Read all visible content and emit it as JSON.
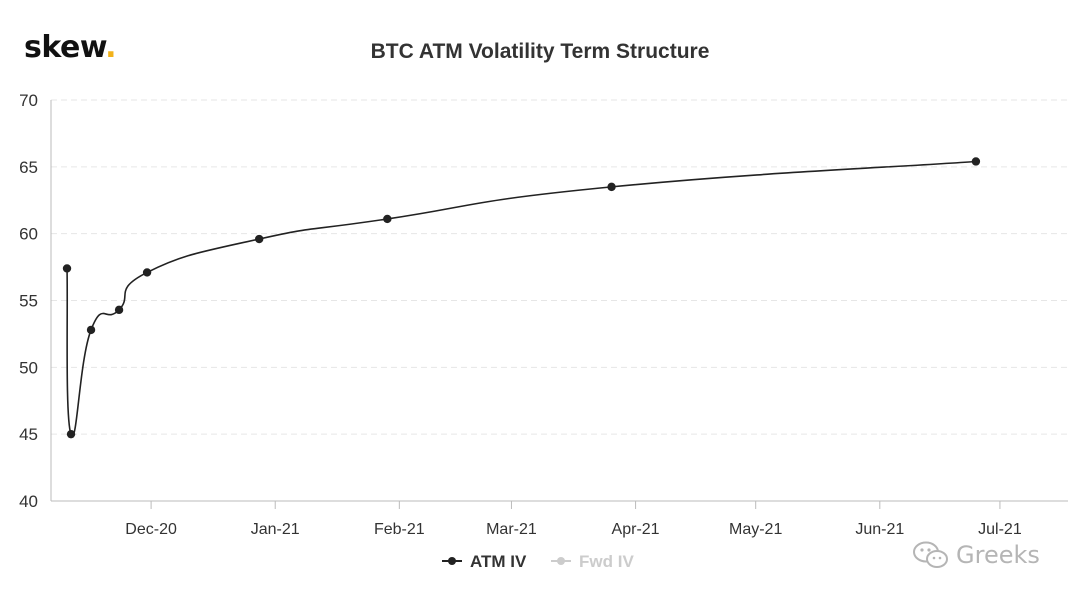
{
  "logo": {
    "text": "skew",
    "dot": "."
  },
  "watermark": {
    "text": "Greeks",
    "icon": "wechat-icon"
  },
  "colors": {
    "line": "#222222",
    "grid": "#e6e6e6",
    "axis": "#bbbbbb",
    "accent": "#f2b21b",
    "inactive": "#cccccc"
  },
  "chart_data": {
    "type": "line",
    "title": "BTC ATM Volatility Term Structure",
    "xlabel": "",
    "ylabel": "",
    "x_type": "datetime",
    "xlim": [
      "2020-11-06",
      "2021-07-18"
    ],
    "ylim": [
      40,
      70
    ],
    "yticks": [
      40,
      45,
      50,
      55,
      60,
      65,
      70
    ],
    "xticks": [
      {
        "date": "2020-12-01",
        "label": "Dec-20"
      },
      {
        "date": "2021-01-01",
        "label": "Jan-21"
      },
      {
        "date": "2021-02-01",
        "label": "Feb-21"
      },
      {
        "date": "2021-03-01",
        "label": "Mar-21"
      },
      {
        "date": "2021-04-01",
        "label": "Apr-21"
      },
      {
        "date": "2021-05-01",
        "label": "May-21"
      },
      {
        "date": "2021-06-01",
        "label": "Jun-21"
      },
      {
        "date": "2021-07-01",
        "label": "Jul-21"
      }
    ],
    "grid": {
      "horizontal": true,
      "style": "dashed"
    },
    "legend": "bottom-center",
    "series": [
      {
        "name": "ATM IV",
        "visible": true,
        "x": [
          "2020-11-10",
          "2020-11-11",
          "2020-11-16",
          "2020-11-23",
          "2020-11-30",
          "2020-12-28",
          "2021-01-29",
          "2021-03-26",
          "2021-06-25"
        ],
        "y": [
          57.4,
          45.0,
          52.8,
          54.3,
          57.1,
          59.6,
          61.1,
          63.5,
          65.4
        ]
      },
      {
        "name": "Fwd IV",
        "visible": false,
        "x": [],
        "y": []
      }
    ]
  }
}
